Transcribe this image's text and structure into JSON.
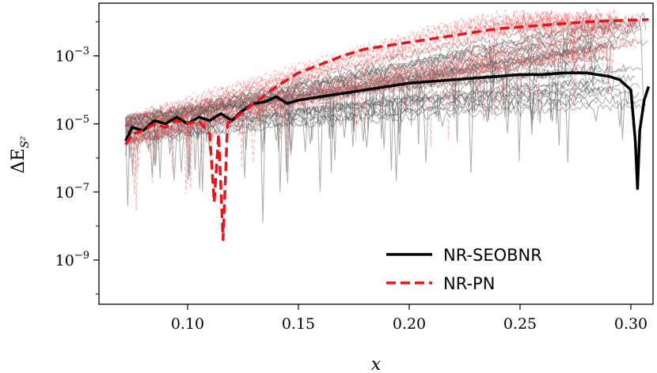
{
  "chart_data": {
    "type": "line",
    "xlabel": "x",
    "ylabel": "ΔE",
    "ylabel_subscript": "S²",
    "xlim": [
      0.06,
      0.31
    ],
    "ylim_log10": [
      -10.3,
      -1.45
    ],
    "yscale": "log",
    "grid": false,
    "legend_position": "lower-right",
    "x_ticks": [
      {
        "value": 0.1,
        "label": "0.10"
      },
      {
        "value": 0.15,
        "label": "0.15"
      },
      {
        "value": 0.2,
        "label": "0.20"
      },
      {
        "value": 0.25,
        "label": "0.25"
      },
      {
        "value": 0.3,
        "label": "0.30"
      }
    ],
    "y_ticks": [
      {
        "exp": -3,
        "base": "10",
        "sup": "−3"
      },
      {
        "exp": -5,
        "base": "10",
        "sup": "−5"
      },
      {
        "exp": -7,
        "base": "10",
        "sup": "−7"
      },
      {
        "exp": -9,
        "base": "10",
        "sup": "−9"
      }
    ],
    "series": [
      {
        "name": "NR-SEOBNR",
        "color": "#000000",
        "style": "solid",
        "x": [
          0.072,
          0.075,
          0.08,
          0.085,
          0.09,
          0.095,
          0.1,
          0.105,
          0.11,
          0.115,
          0.12,
          0.125,
          0.13,
          0.135,
          0.14,
          0.145,
          0.15,
          0.16,
          0.17,
          0.18,
          0.19,
          0.2,
          0.21,
          0.22,
          0.23,
          0.24,
          0.25,
          0.26,
          0.27,
          0.28,
          0.29,
          0.295,
          0.3,
          0.302,
          0.303,
          0.304,
          0.306,
          0.308
        ],
        "log10_y": [
          -5.5,
          -5.1,
          -5.2,
          -4.9,
          -5.0,
          -4.8,
          -5.0,
          -4.8,
          -4.9,
          -4.7,
          -4.9,
          -4.6,
          -4.4,
          -4.35,
          -4.2,
          -4.4,
          -4.3,
          -4.2,
          -4.1,
          -4.0,
          -3.9,
          -3.8,
          -3.75,
          -3.7,
          -3.65,
          -3.6,
          -3.55,
          -3.55,
          -3.5,
          -3.5,
          -3.6,
          -3.7,
          -4.0,
          -5.5,
          -6.9,
          -5.2,
          -4.3,
          -3.9
        ]
      },
      {
        "name": "NR-PN",
        "color": "#e8141c",
        "style": "dashed",
        "x": [
          0.072,
          0.075,
          0.08,
          0.085,
          0.09,
          0.095,
          0.1,
          0.105,
          0.11,
          0.112,
          0.114,
          0.116,
          0.118,
          0.12,
          0.13,
          0.14,
          0.15,
          0.16,
          0.17,
          0.18,
          0.19,
          0.2,
          0.21,
          0.22,
          0.23,
          0.24,
          0.25,
          0.26,
          0.27,
          0.28,
          0.29,
          0.3,
          0.308
        ],
        "log10_y": [
          -5.6,
          -5.3,
          -5.2,
          -5.0,
          -5.1,
          -4.9,
          -5.0,
          -4.9,
          -5.3,
          -7.3,
          -5.3,
          -8.4,
          -5.0,
          -4.9,
          -4.4,
          -3.9,
          -3.5,
          -3.25,
          -3.0,
          -2.8,
          -2.7,
          -2.6,
          -2.5,
          -2.4,
          -2.3,
          -2.2,
          -2.15,
          -2.1,
          -2.05,
          -2.0,
          -1.97,
          -1.95,
          -1.93
        ]
      }
    ],
    "legend": [
      {
        "label": "NR-SEOBNR",
        "color": "#000000",
        "style": "solid"
      },
      {
        "label": "NR-PN",
        "color": "#e8141c",
        "style": "dashed"
      }
    ]
  }
}
